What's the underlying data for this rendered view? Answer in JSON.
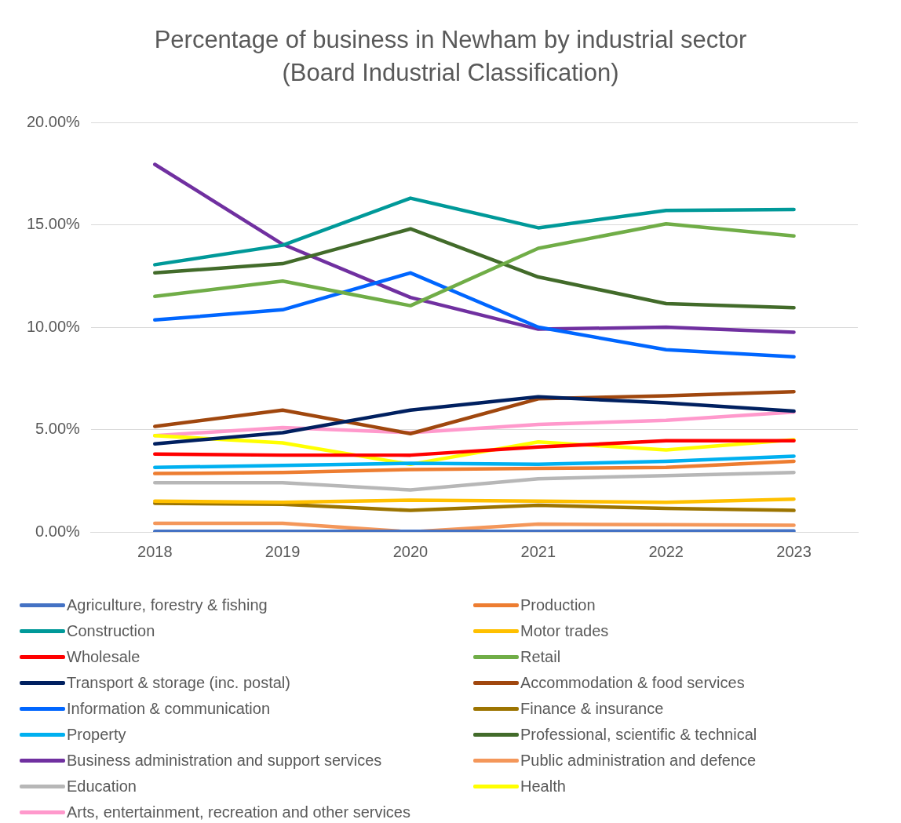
{
  "chart_data": {
    "type": "line",
    "title": "Percentage of business in Newham by industrial sector (Board Industrial Classification)",
    "categories": [
      "2018",
      "2019",
      "2020",
      "2021",
      "2022",
      "2023"
    ],
    "ylim": [
      0,
      20
    ],
    "yticks": [
      {
        "value": 0,
        "label": "0.00%"
      },
      {
        "value": 5,
        "label": "5.00%"
      },
      {
        "value": 10,
        "label": "10.00%"
      },
      {
        "value": 15,
        "label": "15.00%"
      },
      {
        "value": 20,
        "label": "20.00%"
      }
    ],
    "grid": "y",
    "legend": "bottom",
    "marker": "none",
    "line_style": "solid",
    "series": [
      {
        "name": "Agriculture, forestry & fishing",
        "color": "#4472c4",
        "values": [
          0.03,
          0.03,
          0.03,
          0.03,
          0.04,
          0.05
        ]
      },
      {
        "name": "Production",
        "color": "#ed7d31",
        "values": [
          2.85,
          2.9,
          3.05,
          3.1,
          3.15,
          3.45
        ]
      },
      {
        "name": "Construction",
        "color": "#009999",
        "values": [
          13.05,
          14.0,
          16.3,
          14.85,
          15.7,
          15.75
        ]
      },
      {
        "name": "Motor trades",
        "color": "#ffc000",
        "values": [
          1.5,
          1.45,
          1.55,
          1.5,
          1.45,
          1.6
        ]
      },
      {
        "name": "Wholesale",
        "color": "#ff0000",
        "values": [
          3.8,
          3.75,
          3.75,
          4.15,
          4.45,
          4.45
        ]
      },
      {
        "name": "Retail",
        "color": "#70ad47",
        "values": [
          11.5,
          12.25,
          11.05,
          13.85,
          15.05,
          14.45
        ]
      },
      {
        "name": "Transport & storage (inc. postal)",
        "color": "#002060",
        "values": [
          4.3,
          4.85,
          5.95,
          6.6,
          6.3,
          5.9
        ]
      },
      {
        "name": "Accommodation & food services",
        "color": "#a0470e",
        "values": [
          5.15,
          5.95,
          4.8,
          6.5,
          6.65,
          6.85
        ]
      },
      {
        "name": "Information & communication",
        "color": "#0066ff",
        "values": [
          10.35,
          10.85,
          12.65,
          10.0,
          8.9,
          8.55
        ]
      },
      {
        "name": "Finance & insurance",
        "color": "#9c7400",
        "values": [
          1.4,
          1.35,
          1.05,
          1.3,
          1.15,
          1.05
        ]
      },
      {
        "name": "Property",
        "color": "#00b0f0",
        "values": [
          3.15,
          3.25,
          3.35,
          3.3,
          3.45,
          3.7
        ]
      },
      {
        "name": "Professional, scientific & technical",
        "color": "#426b2a",
        "values": [
          12.65,
          13.1,
          14.8,
          12.45,
          11.15,
          10.95
        ]
      },
      {
        "name": "Business administration and support services",
        "color": "#7030a0",
        "values": [
          17.95,
          14.05,
          11.45,
          9.9,
          10.0,
          9.75
        ]
      },
      {
        "name": "Public administration and defence",
        "color": "#f4975a",
        "values": [
          0.42,
          0.42,
          0.0,
          0.38,
          0.35,
          0.33
        ]
      },
      {
        "name": "Education",
        "color": "#b7b7b7",
        "values": [
          2.4,
          2.4,
          2.05,
          2.6,
          2.75,
          2.9
        ]
      },
      {
        "name": "Health",
        "color": "#ffff00",
        "values": [
          4.7,
          4.35,
          3.3,
          4.4,
          4.0,
          4.5
        ]
      },
      {
        "name": "Arts, entertainment, recreation and other services",
        "color": "#ff99cc",
        "values": [
          4.7,
          5.1,
          4.85,
          5.25,
          5.45,
          5.85
        ]
      }
    ]
  }
}
